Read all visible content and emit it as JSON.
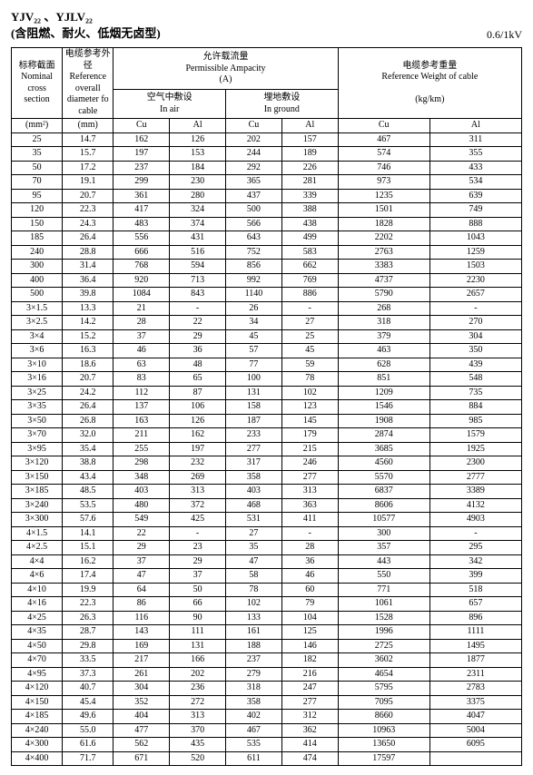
{
  "header": {
    "model": "YJV₂₂ 、YJLV₂₂",
    "subtitle": "(含阻燃、耐火、低烟无卤型)",
    "voltage": "0.6/1kV"
  },
  "cols": {
    "section_cn": "标称截面",
    "section_en": "Nominal cross section",
    "section_unit": "(mm²)",
    "diam_cn": "电缆参考外径",
    "diam_en": "Reference overall diameter fo cable",
    "diam_unit": "(mm)",
    "amp_cn": "允许载流量",
    "amp_en": "Permissible Ampacity",
    "amp_unit": "(A)",
    "air_cn": "空气中敷设",
    "air_en": "In air",
    "ground_cn": "埋地敷设",
    "ground_en": "In ground",
    "wt_cn": "电缆参考重量",
    "wt_en": "Reference Weight of cable",
    "wt_unit": "(kg/km)",
    "cu": "Cu",
    "al": "Al"
  },
  "sections": [
    {
      "rows": [
        [
          "25",
          "14.7",
          "162",
          "126",
          "202",
          "157",
          "467",
          "311"
        ],
        [
          "35",
          "15.7",
          "197",
          "153",
          "244",
          "189",
          "574",
          "355"
        ],
        [
          "50",
          "17.2",
          "237",
          "184",
          "292",
          "226",
          "746",
          "433"
        ],
        [
          "70",
          "19.1",
          "299",
          "230",
          "365",
          "281",
          "973",
          "534"
        ],
        [
          "95",
          "20.7",
          "361",
          "280",
          "437",
          "339",
          "1235",
          "639"
        ],
        [
          "120",
          "22.3",
          "417",
          "324",
          "500",
          "388",
          "1501",
          "749"
        ],
        [
          "150",
          "24.3",
          "483",
          "374",
          "566",
          "438",
          "1828",
          "888"
        ],
        [
          "185",
          "26.4",
          "556",
          "431",
          "643",
          "499",
          "2202",
          "1043"
        ],
        [
          "240",
          "28.8",
          "666",
          "516",
          "752",
          "583",
          "2763",
          "1259"
        ],
        [
          "300",
          "31.4",
          "768",
          "594",
          "856",
          "662",
          "3383",
          "1503"
        ],
        [
          "400",
          "36.4",
          "920",
          "713",
          "992",
          "769",
          "4737",
          "2230"
        ],
        [
          "500",
          "39.8",
          "1084",
          "843",
          "1140",
          "886",
          "5790",
          "2657"
        ]
      ]
    },
    {
      "rows": [
        [
          "3×1.5",
          "13.3",
          "21",
          "-",
          "26",
          "-",
          "268",
          "-"
        ],
        [
          "3×2.5",
          "14.2",
          "28",
          "22",
          "34",
          "27",
          "318",
          "270"
        ],
        [
          "3×4",
          "15.2",
          "37",
          "29",
          "45",
          "25",
          "379",
          "304"
        ],
        [
          "3×6",
          "16.3",
          "46",
          "36",
          "57",
          "45",
          "463",
          "350"
        ],
        [
          "3×10",
          "18.6",
          "63",
          "48",
          "77",
          "59",
          "628",
          "439"
        ],
        [
          "3×16",
          "20.7",
          "83",
          "65",
          "100",
          "78",
          "851",
          "548"
        ],
        [
          "3×25",
          "24.2",
          "112",
          "87",
          "131",
          "102",
          "1209",
          "735"
        ],
        [
          "3×35",
          "26.4",
          "137",
          "106",
          "158",
          "123",
          "1546",
          "884"
        ],
        [
          "3×50",
          "26.8",
          "163",
          "126",
          "187",
          "145",
          "1908",
          "985"
        ],
        [
          "3×70",
          "32.0",
          "211",
          "162",
          "233",
          "179",
          "2874",
          "1579"
        ],
        [
          "3×95",
          "35.4",
          "255",
          "197",
          "277",
          "215",
          "3685",
          "1925"
        ],
        [
          "3×120",
          "38.8",
          "298",
          "232",
          "317",
          "246",
          "4560",
          "2300"
        ],
        [
          "3×150",
          "43.4",
          "348",
          "269",
          "358",
          "277",
          "5570",
          "2777"
        ],
        [
          "3×185",
          "48.5",
          "403",
          "313",
          "403",
          "313",
          "6837",
          "3389"
        ],
        [
          "3×240",
          "53.5",
          "480",
          "372",
          "468",
          "363",
          "8606",
          "4132"
        ],
        [
          "3×300",
          "57.6",
          "549",
          "425",
          "531",
          "411",
          "10577",
          "4903"
        ]
      ]
    },
    {
      "rows": [
        [
          "4×1.5",
          "14.1",
          "22",
          "-",
          "27",
          "-",
          "300",
          "-"
        ],
        [
          "4×2.5",
          "15.1",
          "29",
          "23",
          "35",
          "28",
          "357",
          "295"
        ],
        [
          "4×4",
          "16.2",
          "37",
          "29",
          "47",
          "36",
          "443",
          "342"
        ],
        [
          "4×6",
          "17.4",
          "47",
          "37",
          "58",
          "46",
          "550",
          "399"
        ],
        [
          "4×10",
          "19.9",
          "64",
          "50",
          "78",
          "60",
          "771",
          "518"
        ],
        [
          "4×16",
          "22.3",
          "86",
          "66",
          "102",
          "79",
          "1061",
          "657"
        ],
        [
          "4×25",
          "26.3",
          "116",
          "90",
          "133",
          "104",
          "1528",
          "896"
        ],
        [
          "4×35",
          "28.7",
          "143",
          "111",
          "161",
          "125",
          "1996",
          "1111"
        ],
        [
          "4×50",
          "29.8",
          "169",
          "131",
          "188",
          "146",
          "2725",
          "1495"
        ],
        [
          "4×70",
          "33.5",
          "217",
          "166",
          "237",
          "182",
          "3602",
          "1877"
        ],
        [
          "4×95",
          "37.3",
          "261",
          "202",
          "279",
          "216",
          "4654",
          "2311"
        ],
        [
          "4×120",
          "40.7",
          "304",
          "236",
          "318",
          "247",
          "5795",
          "2783"
        ],
        [
          "4×150",
          "45.4",
          "352",
          "272",
          "358",
          "277",
          "7095",
          "3375"
        ],
        [
          "4×185",
          "49.6",
          "404",
          "313",
          "402",
          "312",
          "8660",
          "4047"
        ],
        [
          "4×240",
          "55.0",
          "477",
          "370",
          "467",
          "362",
          "10963",
          "5004"
        ],
        [
          "4×300",
          "61.6",
          "562",
          "435",
          "535",
          "414",
          "13650",
          "6095"
        ],
        [
          "4×400",
          "71.7",
          "671",
          "520",
          "611",
          "474",
          "17597",
          ""
        ]
      ]
    }
  ]
}
